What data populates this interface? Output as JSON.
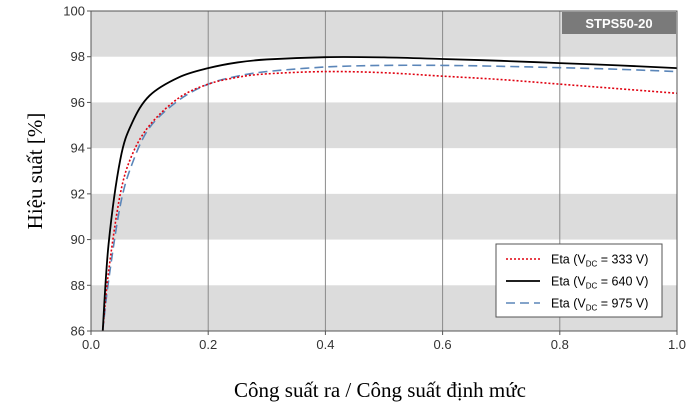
{
  "chart_data": {
    "type": "line",
    "title": "",
    "model_label": "STPS50-20",
    "xlabel": "Công suất ra / Công suất định mức",
    "ylabel": "Hiệu suất [%]",
    "xlim": [
      0.0,
      1.0
    ],
    "ylim": [
      86,
      100
    ],
    "x_ticks": [
      "0.0",
      "0.2",
      "0.4",
      "0.6",
      "0.8",
      "1.0"
    ],
    "y_ticks": [
      "86",
      "88",
      "90",
      "92",
      "94",
      "96",
      "98",
      "100"
    ],
    "grid": "vertical lines with alternating gray horizontal bands",
    "legend_position": "bottom-right",
    "series": [
      {
        "name": "Eta (V",
        "sub": "DC",
        "value": " = 333 V)",
        "color": "#e0000f",
        "style": "dotted",
        "x": [
          0.02,
          0.03,
          0.05,
          0.07,
          0.1,
          0.15,
          0.2,
          0.25,
          0.3,
          0.4,
          0.5,
          0.6,
          0.7,
          0.8,
          0.9,
          1.0
        ],
        "y": [
          86.0,
          88.6,
          92.0,
          93.7,
          95.0,
          96.2,
          96.8,
          97.1,
          97.25,
          97.35,
          97.3,
          97.15,
          97.0,
          96.8,
          96.6,
          96.4
        ]
      },
      {
        "name": "Eta (V",
        "sub": "DC",
        "value": " = 640 V)",
        "color": "#000000",
        "style": "solid",
        "x": [
          0.02,
          0.03,
          0.05,
          0.07,
          0.1,
          0.15,
          0.2,
          0.25,
          0.3,
          0.4,
          0.5,
          0.6,
          0.7,
          0.8,
          0.9,
          1.0
        ],
        "y": [
          86.0,
          89.8,
          93.5,
          95.1,
          96.3,
          97.1,
          97.5,
          97.75,
          97.88,
          97.98,
          97.97,
          97.9,
          97.82,
          97.72,
          97.62,
          97.5
        ]
      },
      {
        "name": "Eta (V",
        "sub": "DC",
        "value": " = 975 V)",
        "color": "#5b86b9",
        "style": "dashed",
        "x": [
          0.02,
          0.03,
          0.05,
          0.07,
          0.1,
          0.15,
          0.2,
          0.25,
          0.3,
          0.4,
          0.5,
          0.6,
          0.7,
          0.8,
          0.9,
          1.0
        ],
        "y": [
          86.0,
          88.2,
          91.5,
          93.3,
          94.9,
          96.1,
          96.8,
          97.15,
          97.35,
          97.55,
          97.62,
          97.62,
          97.58,
          97.52,
          97.45,
          97.35
        ]
      }
    ]
  }
}
